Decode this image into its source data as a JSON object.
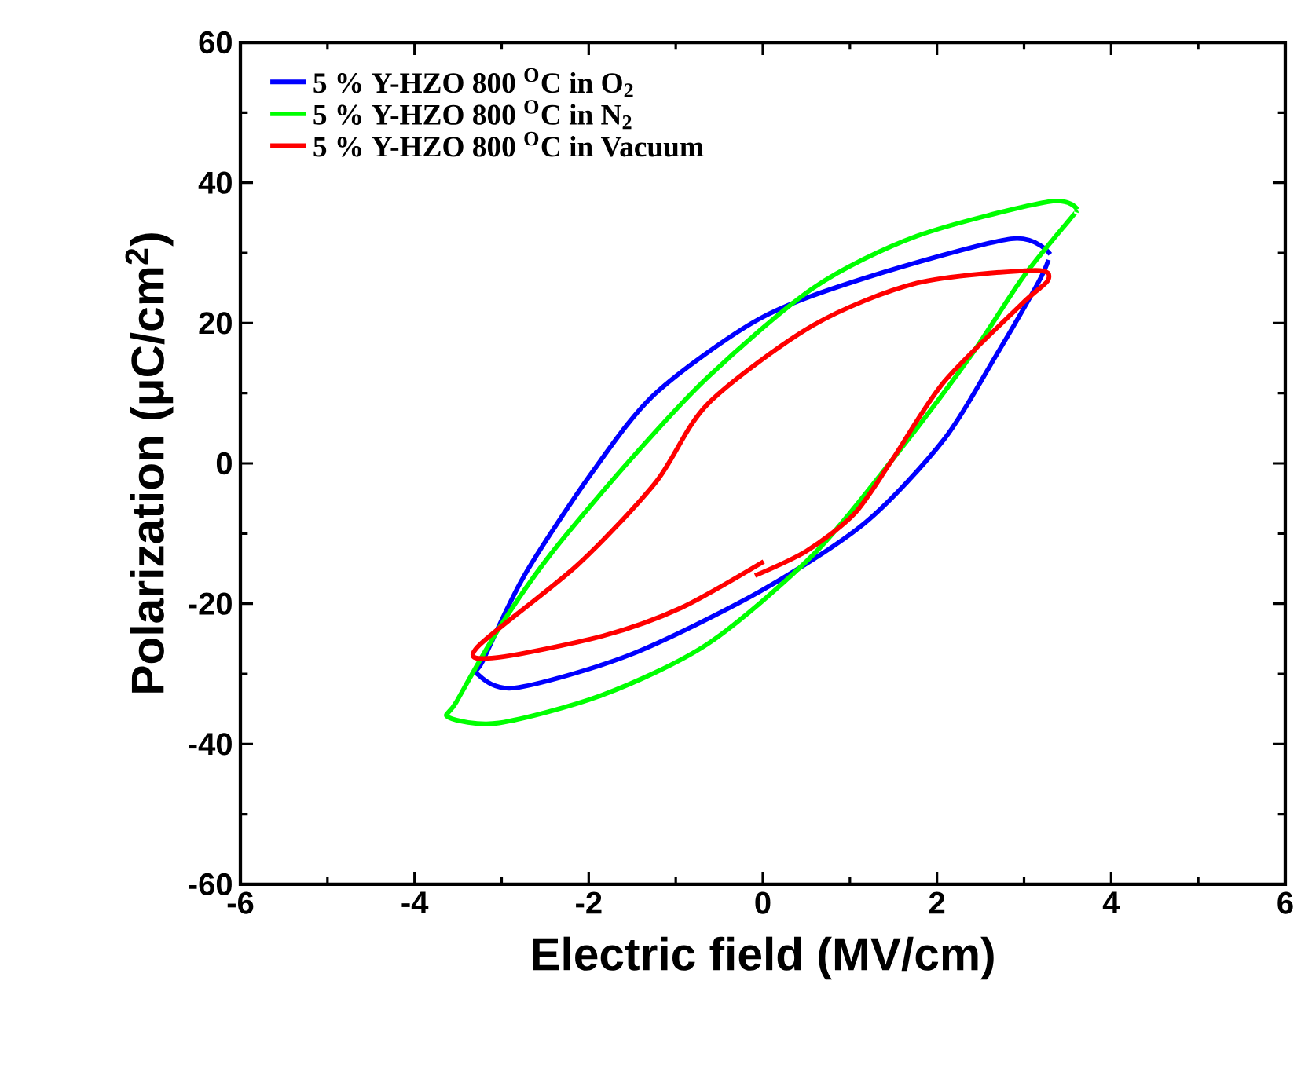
{
  "chart_data": {
    "type": "line",
    "xlabel": "Electric field (MV/cm)",
    "ylabel": "Polarization (μC/cm$^{2}$)",
    "xlim": [
      -6,
      6
    ],
    "xticks": [
      -6,
      -4,
      -2,
      0,
      2,
      4,
      6
    ],
    "ylim": [
      -60,
      60
    ],
    "yticks": [
      -60,
      -40,
      -20,
      0,
      20,
      40,
      60
    ],
    "legend": "top left",
    "grid": false,
    "marker": "none",
    "line_style": "solid",
    "series": [
      {
        "name": "5 % Y-HZO 800 $^{O}$C in O$_{2}$",
        "color": "#0000ff",
        "x": [
          3.3,
          2.85,
          1.17,
          -0.04,
          -1.23,
          -1.95,
          -2.74,
          -3.21,
          -3.28,
          -2.85,
          -1.53,
          -0.04,
          1.17,
          2.08,
          2.67,
          3.16,
          3.28
        ],
        "values": [
          29.8,
          32,
          26.4,
          20.6,
          10,
          -1.1,
          -16,
          -28,
          -30,
          -32,
          -27.3,
          -18.3,
          -8.5,
          3.4,
          15.2,
          25.7,
          29
        ]
      },
      {
        "name": "5 % Y-HZO 800 $^{O}$C in N$_{2}$",
        "color": "#00ff00",
        "x": [
          3.61,
          3.28,
          1.77,
          0.58,
          -0.63,
          -1.53,
          -2.44,
          -3.03,
          -3.52,
          -3.61,
          -3.03,
          -1.84,
          -0.63,
          0.58,
          1.48,
          2.38,
          2.98,
          3.52,
          3.6
        ],
        "values": [
          36.2,
          37.3,
          32.4,
          25,
          12.3,
          0.4,
          -13,
          -23.5,
          -34,
          -36.2,
          -37,
          -33,
          -25.7,
          -13,
          0.4,
          15.2,
          26.4,
          34.7,
          35.8
        ]
      },
      {
        "name": "5 % Y-HZO 800 $^{O}$C in Vacuum",
        "color": "#ff0000",
        "x": [
          -0.09,
          0.5,
          1.05,
          1.48,
          2.08,
          2.98,
          3.28,
          3.1,
          1.77,
          0.58,
          -0.63,
          -1.23,
          -2.13,
          -3.28,
          -3.07,
          -1.84,
          -0.94,
          0.01
        ],
        "values": [
          -16,
          -12.5,
          -7.2,
          0.4,
          11.6,
          22.8,
          26.2,
          27.5,
          25.7,
          19.7,
          8.5,
          -2.7,
          -14.5,
          -26.2,
          -27.7,
          -24.6,
          -20.6,
          -14
        ]
      }
    ]
  }
}
